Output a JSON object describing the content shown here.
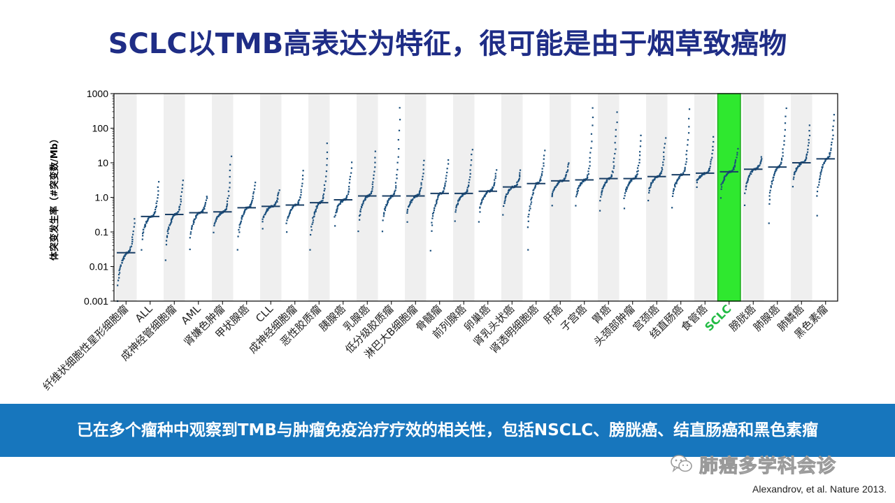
{
  "title": "SCLC以TMB高表达为特征，很可能是由于烟草致癌物",
  "banner": "已在多个瘤种中观察到TMB与肿瘤免疫治疗疗效的相关性，包括NSCLC、膀胱癌、结直肠癌和黑色素瘤",
  "watermark": {
    "text": "肺癌多学科会诊",
    "icon": "wechat-icon"
  },
  "citation": "Alexandrov, et al. Nature 2013.",
  "chart_data": {
    "type": "scatter",
    "xlabel": "",
    "ylabel": "体突变发生率（#突变数/Mb）",
    "yscale": "log",
    "ylim": [
      0.001,
      1000
    ],
    "yticks": [
      "1000",
      "100",
      "10",
      "1.0",
      "0.1",
      "0.01",
      "0.001"
    ],
    "ytick_values": [
      1000,
      100,
      10,
      1,
      0.1,
      0.01,
      0.001
    ],
    "highlight_category": "SCLC",
    "colors": {
      "points": "#1a4f7d",
      "median": "#1a3f66",
      "highlight": "#2fe82f",
      "highlight_border": "#1fa81f",
      "highlight_label": "#22bb44",
      "band": "#efefef"
    },
    "categories": [
      {
        "label": "纤维状细胞性星形细胞瘤",
        "median": 0.025,
        "min": 0.001,
        "max": 0.25
      },
      {
        "label": "ALL",
        "median": 0.28,
        "min": 0.03,
        "max": 2.7
      },
      {
        "label": "成神经管细胞瘤",
        "median": 0.32,
        "min": 0.015,
        "max": 3.2
      },
      {
        "label": "AML",
        "median": 0.36,
        "min": 0.03,
        "max": 1.1
      },
      {
        "label": "肾嫌色肿瘤",
        "median": 0.38,
        "min": 0.1,
        "max": 15
      },
      {
        "label": "甲状腺癌",
        "median": 0.5,
        "min": 0.03,
        "max": 2.8
      },
      {
        "label": "CLL",
        "median": 0.55,
        "min": 0.12,
        "max": 1.6
      },
      {
        "label": "成神经细胞瘤",
        "median": 0.6,
        "min": 0.1,
        "max": 6
      },
      {
        "label": "恶性胶质瘤",
        "median": 0.7,
        "min": 0.03,
        "max": 35
      },
      {
        "label": "胰腺癌",
        "median": 0.85,
        "min": 0.15,
        "max": 10
      },
      {
        "label": "乳腺癌",
        "median": 1.1,
        "min": 0.1,
        "max": 22
      },
      {
        "label": "低分级胶质瘤",
        "median": 1.1,
        "min": 0.1,
        "max": 400
      },
      {
        "label": "淋巴大B细胞瘤",
        "median": 1.1,
        "min": 0.2,
        "max": 12
      },
      {
        "label": "骨髓瘤",
        "median": 1.3,
        "min": 0.03,
        "max": 12
      },
      {
        "label": "前列腺癌",
        "median": 1.3,
        "min": 0.2,
        "max": 25
      },
      {
        "label": "卵巢癌",
        "median": 1.5,
        "min": 0.2,
        "max": 6
      },
      {
        "label": "肾乳头状癌",
        "median": 2,
        "min": 0.3,
        "max": 6
      },
      {
        "label": "肾透明细胞癌",
        "median": 2.5,
        "min": 0.03,
        "max": 22
      },
      {
        "label": "肝癌",
        "median": 3,
        "min": 0.6,
        "max": 10
      },
      {
        "label": "子宫癌",
        "median": 3.2,
        "min": 0.6,
        "max": 400
      },
      {
        "label": "胃癌",
        "median": 3.5,
        "min": 0.4,
        "max": 280
      },
      {
        "label": "头颈部肿瘤",
        "median": 3.5,
        "min": 0.5,
        "max": 60
      },
      {
        "label": "宫颈癌",
        "median": 4,
        "min": 0.8,
        "max": 50
      },
      {
        "label": "结直肠癌",
        "median": 4.5,
        "min": 0.5,
        "max": 350
      },
      {
        "label": "食管癌",
        "median": 5,
        "min": 2,
        "max": 55
      },
      {
        "label": "SCLC",
        "median": 5.5,
        "min": 1,
        "max": 25
      },
      {
        "label": "膀胱癌",
        "median": 6.5,
        "min": 0.6,
        "max": 15
      },
      {
        "label": "肺腺癌",
        "median": 7.5,
        "min": 0.18,
        "max": 380
      },
      {
        "label": "肺鳞癌",
        "median": 10,
        "min": 2,
        "max": 120
      },
      {
        "label": "黑色素瘤",
        "median": 13,
        "min": 0.3,
        "max": 250
      }
    ]
  }
}
